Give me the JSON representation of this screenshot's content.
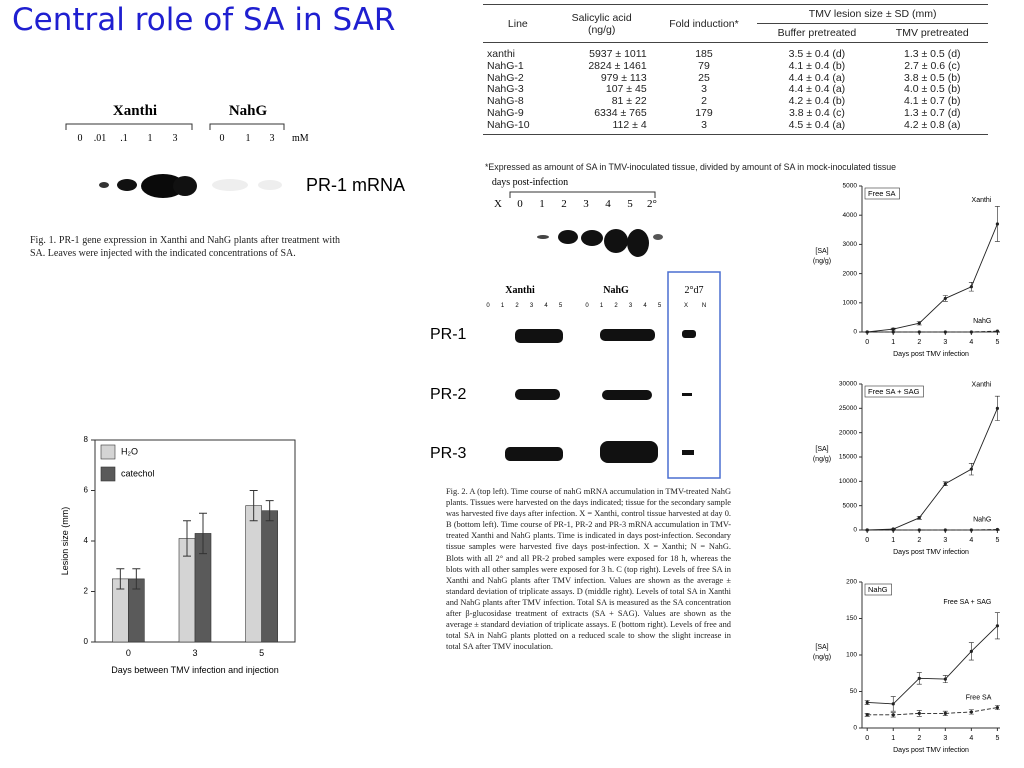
{
  "title": "Central role of SA in SAR",
  "figure1": {
    "groups": [
      "Xanthi",
      "NahG"
    ],
    "lanes": [
      "0",
      ".01",
      ".1",
      "1",
      "3",
      "0",
      "1",
      "3"
    ],
    "unit": "mM",
    "probe": "PR-1 mRNA",
    "caption": "Fig. 1. PR-1 gene expression in Xanthi and NahG plants after treatment with SA. Leaves were injected with the indicated concentrations of SA."
  },
  "table": {
    "header": [
      "Line",
      "Salicylic acid (ng/g)",
      "Fold induction*",
      "TMV lesion size ± SD (mm)"
    ],
    "subheader": [
      "Buffer pretreated",
      "TMV pretreated"
    ],
    "rows": [
      [
        "xanthi",
        "5937 ± 1011",
        "185",
        "3.5 ± 0.4 (d)",
        "1.3 ± 0.5 (d)"
      ],
      [
        "NahG-1",
        "2824 ± 1461",
        "79",
        "4.1 ± 0.4 (b)",
        "2.7 ± 0.6 (c)"
      ],
      [
        "NahG-2",
        "979 ± 113",
        "25",
        "4.4 ± 0.4 (a)",
        "3.8 ± 0.5 (b)"
      ],
      [
        "NahG-3",
        "107 ± 45",
        "3",
        "4.4 ± 0.4 (a)",
        "4.0 ± 0.5 (b)"
      ],
      [
        "NahG-8",
        "81 ± 22",
        "2",
        "4.2 ± 0.4 (b)",
        "4.1 ± 0.7 (b)"
      ],
      [
        "NahG-9",
        "6334 ± 765",
        "179",
        "3.8 ± 0.4 (c)",
        "1.3 ± 0.7 (d)"
      ],
      [
        "NahG-10",
        "112 ± 4",
        "3",
        "4.5 ± 0.4 (a)",
        "4.2 ± 0.8 (a)"
      ]
    ],
    "footnote": "*Expressed as amount of SA in TMV-inoculated tissue, divided by amount of SA in mock-inoculated tissue"
  },
  "figure2": {
    "timecourse_label": "days post-infection",
    "timecourse_lanes": [
      "X",
      "0",
      "1",
      "2",
      "3",
      "4",
      "5",
      "2°"
    ],
    "groups": [
      "Xanthi",
      "NahG",
      "2°d7"
    ],
    "lanes": [
      "0",
      "1",
      "2",
      "3",
      "4",
      "5",
      "0",
      "1",
      "2",
      "3",
      "4",
      "5",
      "X",
      "N"
    ],
    "probes": [
      "PR-1",
      "PR-2",
      "PR-3"
    ],
    "caption": "Fig. 2. A (top left). Time course of nahG mRNA accumulation in TMV-treated NahG plants. Tissues were harvested on the days indicated; tissue for the secondary sample was harvested five days after infection. X = Xanthi, control tissue harvested at day 0. B (bottom left). Time course of PR-1, PR-2 and PR-3 mRNA accumulation in TMV-treated Xanthi and NahG plants. Time is indicated in days post-infection. Secondary tissue samples were harvested five days post-infection. X = Xanthi; N = NahG. Blots with all 2° and all PR-2 probed samples were exposed for 18 h, whereas the blots with all other samples were exposed for 3 h. C (top right). Levels of free SA in Xanthi and NahG plants after TMV infection. Values are shown as the average ± standard deviation of triplicate assays. D (middle right). Levels of total SA in Xanthi and NahG plants after TMV infection. Total SA is measured as the SA concentration after β-glucosidase treatment of extracts (SA + SAG). Values are shown as the average ± standard deviation of triplicate assays. E (bottom right). Levels of free and total SA in NahG plants plotted on a reduced scale to show the slight increase in total SA after TMV inoculation."
  },
  "chart_data": [
    {
      "type": "bar",
      "xlabel": "Days between TMV infection and injection",
      "ylabel": "Lesion size (mm)",
      "categories": [
        "0",
        "3",
        "5"
      ],
      "series": [
        {
          "name": "H₂O",
          "color": "#d4d4d4",
          "values": [
            2.5,
            4.1,
            5.4
          ],
          "errors": [
            0.4,
            0.7,
            0.6
          ]
        },
        {
          "name": "catechol",
          "color": "#5a5a5a",
          "values": [
            2.5,
            4.3,
            5.2
          ],
          "errors": [
            0.4,
            0.8,
            0.4
          ]
        }
      ],
      "ylim": [
        0,
        8
      ],
      "yticks": [
        0,
        2,
        4,
        6,
        8
      ]
    },
    {
      "type": "line",
      "title": "Free SA",
      "ylabel": [
        "[SA]",
        "(ng/g)"
      ],
      "xlabel": "Days post TMV infection",
      "x": [
        0,
        1,
        2,
        3,
        4,
        5
      ],
      "series": [
        {
          "name": "Xanthi",
          "color": "#222222",
          "values": [
            0,
            100,
            300,
            1150,
            1550,
            3700
          ],
          "errors": [
            0,
            30,
            60,
            100,
            150,
            600
          ]
        },
        {
          "name": "NahG",
          "color": "#222222",
          "values": [
            0,
            0,
            0,
            0,
            0,
            30
          ]
        }
      ],
      "xlim": [
        -0.2,
        5.1
      ],
      "xticks": [
        0,
        1,
        2,
        3,
        4,
        5
      ],
      "ylim": [
        0,
        5000
      ],
      "yticks": [
        0,
        1000,
        2000,
        3000,
        4000,
        5000
      ]
    },
    {
      "type": "line",
      "title": "Free SA + SAG",
      "ylabel": [
        "[SA]",
        "(ng/g)"
      ],
      "xlabel": "Days post TMV infection",
      "x": [
        0,
        1,
        2,
        3,
        4,
        5
      ],
      "series": [
        {
          "name": "Xanthi",
          "color": "#222222",
          "values": [
            0,
            200,
            2500,
            9500,
            12500,
            25000
          ],
          "errors": [
            0,
            50,
            300,
            400,
            1200,
            2500
          ]
        },
        {
          "name": "NahG",
          "color": "#222222",
          "values": [
            0,
            0,
            0,
            0,
            0,
            100
          ]
        }
      ],
      "xlim": [
        -0.2,
        5.1
      ],
      "xticks": [
        0,
        1,
        2,
        3,
        4,
        5
      ],
      "ylim": [
        0,
        30000
      ],
      "yticks": [
        0,
        5000,
        10000,
        15000,
        20000,
        25000,
        30000
      ]
    },
    {
      "type": "line",
      "title": "NahG",
      "ylabel": [
        "[SA]",
        "(ng/g)"
      ],
      "xlabel": "Days post TMV infection",
      "x": [
        0,
        1,
        2,
        3,
        4,
        5
      ],
      "series": [
        {
          "name": "Free SA + SAG",
          "color": "#222222",
          "values": [
            35,
            33,
            68,
            67,
            105,
            140
          ],
          "errors": [
            3,
            10,
            8,
            5,
            12,
            18
          ]
        },
        {
          "name": "Free SA",
          "color": "#222222",
          "values": [
            18,
            18,
            20,
            20,
            22,
            28
          ],
          "errors": [
            2,
            3,
            4,
            3,
            3,
            3
          ]
        }
      ],
      "xlim": [
        -0.2,
        5.1
      ],
      "xticks": [
        0,
        1,
        2,
        3,
        4,
        5
      ],
      "ylim": [
        0,
        200
      ],
      "yticks": [
        0,
        50,
        100,
        150,
        200
      ]
    }
  ]
}
